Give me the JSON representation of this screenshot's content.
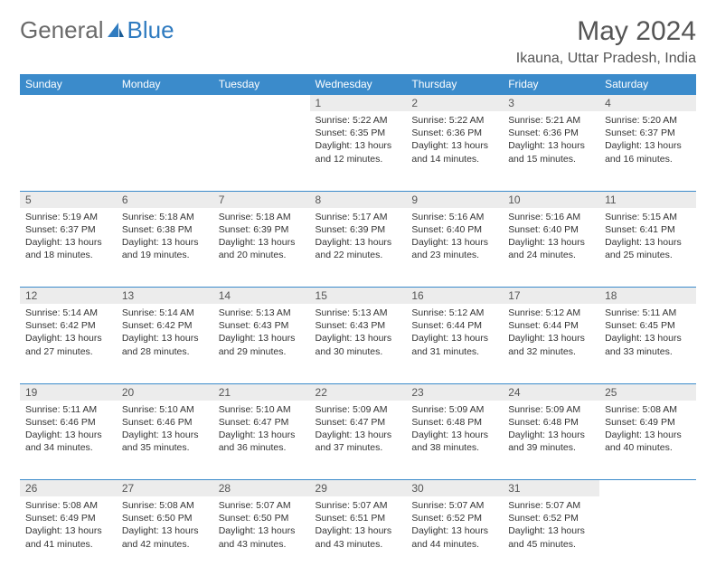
{
  "logo": {
    "part1": "General",
    "part2": "Blue"
  },
  "title": "May 2024",
  "location": "Ikauna, Uttar Pradesh, India",
  "colors": {
    "header_bg": "#3b8bcb",
    "header_text": "#ffffff",
    "daynum_bg": "#ececec",
    "text": "#333333",
    "rule": "#3b8bcb"
  },
  "weekdays": [
    "Sunday",
    "Monday",
    "Tuesday",
    "Wednesday",
    "Thursday",
    "Friday",
    "Saturday"
  ],
  "weeks": [
    [
      {
        "n": "",
        "sr": "",
        "ss": "",
        "dl": ""
      },
      {
        "n": "",
        "sr": "",
        "ss": "",
        "dl": ""
      },
      {
        "n": "",
        "sr": "",
        "ss": "",
        "dl": ""
      },
      {
        "n": "1",
        "sr": "5:22 AM",
        "ss": "6:35 PM",
        "dl": "13 hours and 12 minutes."
      },
      {
        "n": "2",
        "sr": "5:22 AM",
        "ss": "6:36 PM",
        "dl": "13 hours and 14 minutes."
      },
      {
        "n": "3",
        "sr": "5:21 AM",
        "ss": "6:36 PM",
        "dl": "13 hours and 15 minutes."
      },
      {
        "n": "4",
        "sr": "5:20 AM",
        "ss": "6:37 PM",
        "dl": "13 hours and 16 minutes."
      }
    ],
    [
      {
        "n": "5",
        "sr": "5:19 AM",
        "ss": "6:37 PM",
        "dl": "13 hours and 18 minutes."
      },
      {
        "n": "6",
        "sr": "5:18 AM",
        "ss": "6:38 PM",
        "dl": "13 hours and 19 minutes."
      },
      {
        "n": "7",
        "sr": "5:18 AM",
        "ss": "6:39 PM",
        "dl": "13 hours and 20 minutes."
      },
      {
        "n": "8",
        "sr": "5:17 AM",
        "ss": "6:39 PM",
        "dl": "13 hours and 22 minutes."
      },
      {
        "n": "9",
        "sr": "5:16 AM",
        "ss": "6:40 PM",
        "dl": "13 hours and 23 minutes."
      },
      {
        "n": "10",
        "sr": "5:16 AM",
        "ss": "6:40 PM",
        "dl": "13 hours and 24 minutes."
      },
      {
        "n": "11",
        "sr": "5:15 AM",
        "ss": "6:41 PM",
        "dl": "13 hours and 25 minutes."
      }
    ],
    [
      {
        "n": "12",
        "sr": "5:14 AM",
        "ss": "6:42 PM",
        "dl": "13 hours and 27 minutes."
      },
      {
        "n": "13",
        "sr": "5:14 AM",
        "ss": "6:42 PM",
        "dl": "13 hours and 28 minutes."
      },
      {
        "n": "14",
        "sr": "5:13 AM",
        "ss": "6:43 PM",
        "dl": "13 hours and 29 minutes."
      },
      {
        "n": "15",
        "sr": "5:13 AM",
        "ss": "6:43 PM",
        "dl": "13 hours and 30 minutes."
      },
      {
        "n": "16",
        "sr": "5:12 AM",
        "ss": "6:44 PM",
        "dl": "13 hours and 31 minutes."
      },
      {
        "n": "17",
        "sr": "5:12 AM",
        "ss": "6:44 PM",
        "dl": "13 hours and 32 minutes."
      },
      {
        "n": "18",
        "sr": "5:11 AM",
        "ss": "6:45 PM",
        "dl": "13 hours and 33 minutes."
      }
    ],
    [
      {
        "n": "19",
        "sr": "5:11 AM",
        "ss": "6:46 PM",
        "dl": "13 hours and 34 minutes."
      },
      {
        "n": "20",
        "sr": "5:10 AM",
        "ss": "6:46 PM",
        "dl": "13 hours and 35 minutes."
      },
      {
        "n": "21",
        "sr": "5:10 AM",
        "ss": "6:47 PM",
        "dl": "13 hours and 36 minutes."
      },
      {
        "n": "22",
        "sr": "5:09 AM",
        "ss": "6:47 PM",
        "dl": "13 hours and 37 minutes."
      },
      {
        "n": "23",
        "sr": "5:09 AM",
        "ss": "6:48 PM",
        "dl": "13 hours and 38 minutes."
      },
      {
        "n": "24",
        "sr": "5:09 AM",
        "ss": "6:48 PM",
        "dl": "13 hours and 39 minutes."
      },
      {
        "n": "25",
        "sr": "5:08 AM",
        "ss": "6:49 PM",
        "dl": "13 hours and 40 minutes."
      }
    ],
    [
      {
        "n": "26",
        "sr": "5:08 AM",
        "ss": "6:49 PM",
        "dl": "13 hours and 41 minutes."
      },
      {
        "n": "27",
        "sr": "5:08 AM",
        "ss": "6:50 PM",
        "dl": "13 hours and 42 minutes."
      },
      {
        "n": "28",
        "sr": "5:07 AM",
        "ss": "6:50 PM",
        "dl": "13 hours and 43 minutes."
      },
      {
        "n": "29",
        "sr": "5:07 AM",
        "ss": "6:51 PM",
        "dl": "13 hours and 43 minutes."
      },
      {
        "n": "30",
        "sr": "5:07 AM",
        "ss": "6:52 PM",
        "dl": "13 hours and 44 minutes."
      },
      {
        "n": "31",
        "sr": "5:07 AM",
        "ss": "6:52 PM",
        "dl": "13 hours and 45 minutes."
      },
      {
        "n": "",
        "sr": "",
        "ss": "",
        "dl": ""
      }
    ]
  ],
  "labels": {
    "sunrise": "Sunrise:",
    "sunset": "Sunset:",
    "daylight": "Daylight:"
  }
}
